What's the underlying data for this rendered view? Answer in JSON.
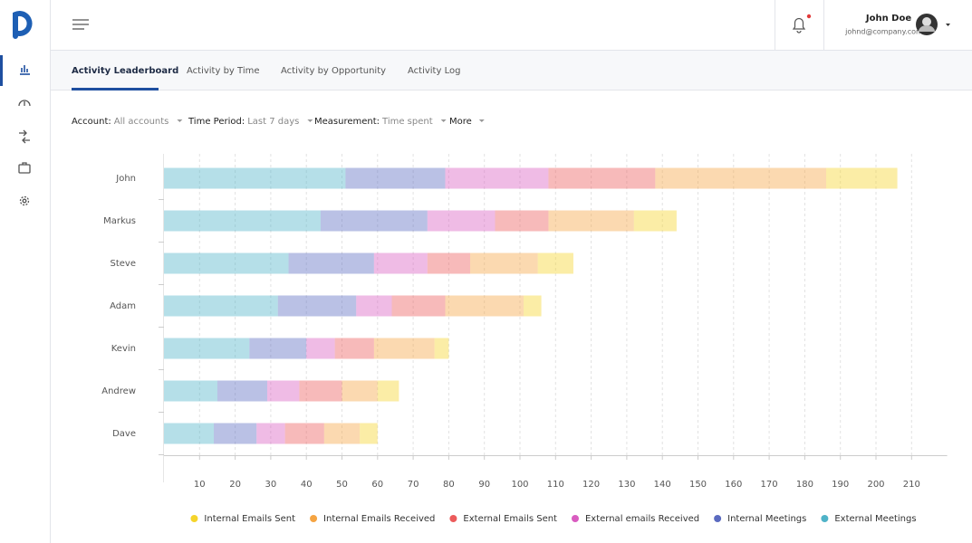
{
  "header": {
    "user_name": "John Doe",
    "user_email": "johnd@company.com"
  },
  "tabs": [
    "Activity Leaderboard",
    "Activity by Time",
    "Activity by Opportunity",
    "Activity Log"
  ],
  "filters": [
    {
      "label": "Account:",
      "value": "All accounts"
    },
    {
      "label": "Time Period:",
      "value": "Last 7 days"
    },
    {
      "label": "Measurement:",
      "value": "Time spent"
    }
  ],
  "more": "More",
  "chart_data": {
    "type": "bar",
    "orientation": "horizontal",
    "stacked": true,
    "categories": [
      "John",
      "Markus",
      "Steve",
      "Adam",
      "Kevin",
      "Andrew",
      "Dave"
    ],
    "series": [
      {
        "name": "Internal Emails Sent",
        "color": "#f5d42b",
        "values": [
          20,
          12,
          10,
          5,
          4,
          6,
          5
        ]
      },
      {
        "name": "Internal Emails Received",
        "color": "#f5a442",
        "values": [
          48,
          24,
          19,
          22,
          17,
          10,
          10
        ]
      },
      {
        "name": "External Emails Sent",
        "color": "#ec5b5b",
        "values": [
          30,
          15,
          12,
          15,
          11,
          12,
          11
        ]
      },
      {
        "name": "External emails Received",
        "color": "#d95cc0",
        "values": [
          29,
          19,
          15,
          10,
          8,
          9,
          8
        ]
      },
      {
        "name": "Internal Meetings",
        "color": "#5b6bc0",
        "values": [
          28,
          30,
          24,
          22,
          16,
          14,
          12
        ]
      },
      {
        "name": "External Meetings",
        "color": "#4fb3c8",
        "values": [
          51,
          44,
          35,
          32,
          24,
          15,
          14
        ]
      }
    ],
    "xlim": [
      0,
      220
    ],
    "xticks": [
      10,
      20,
      30,
      40,
      50,
      60,
      70,
      80,
      90,
      100,
      110,
      120,
      130,
      140,
      150,
      160,
      170,
      180,
      190,
      200,
      210
    ],
    "grid": true,
    "legend": "bottom"
  }
}
